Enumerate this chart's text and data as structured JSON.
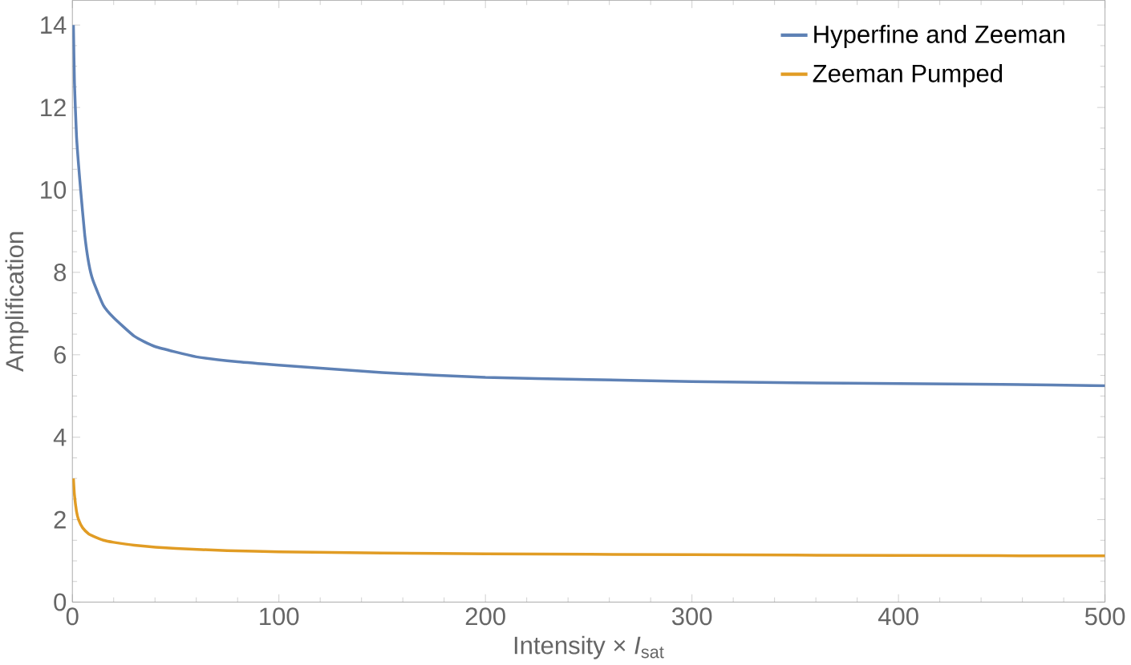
{
  "chart_data": {
    "type": "line",
    "xlabel": "Intensity × *I*$_{sat}$",
    "ylabel": "Amplification",
    "xlim": [
      0,
      500
    ],
    "ylim": [
      0,
      14.6
    ],
    "xticks": [
      0,
      100,
      200,
      300,
      400,
      500
    ],
    "yticks": [
      0,
      2,
      4,
      6,
      8,
      10,
      12,
      14
    ],
    "grid": false,
    "legend": "top right",
    "marker": "none",
    "line_style": "solid",
    "series": [
      {
        "name": "Hyperfine and Zeeman",
        "color": "#5e81b5",
        "x": [
          0.5,
          1,
          2,
          3,
          4,
          6,
          8,
          10,
          15,
          20,
          30,
          40,
          60,
          80,
          100,
          150,
          200,
          250,
          300,
          350,
          400,
          450,
          500
        ],
        "values": [
          14,
          12.6,
          11.3,
          10.6,
          10,
          8.9,
          8.2,
          7.8,
          7.2,
          6.9,
          6.45,
          6.2,
          5.95,
          5.83,
          5.75,
          5.57,
          5.45,
          5.4,
          5.35,
          5.32,
          5.3,
          5.28,
          5.25
        ]
      },
      {
        "name": "Zeeman Pumped",
        "color": "#e19c24",
        "x": [
          0.5,
          1,
          2,
          3,
          5,
          8,
          10,
          15,
          20,
          30,
          50,
          75,
          100,
          150,
          200,
          300,
          400,
          500
        ],
        "values": [
          3,
          2.6,
          2.2,
          2,
          1.8,
          1.65,
          1.6,
          1.5,
          1.45,
          1.38,
          1.3,
          1.25,
          1.22,
          1.19,
          1.17,
          1.15,
          1.13,
          1.12
        ]
      }
    ]
  }
}
